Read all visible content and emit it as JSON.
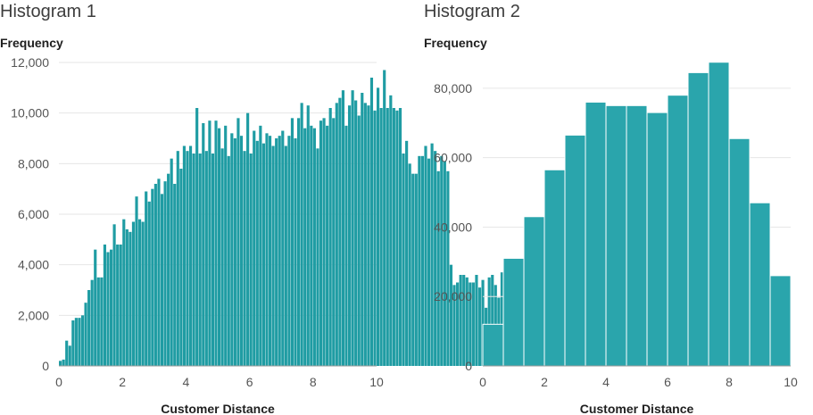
{
  "chart_data": [
    {
      "type": "bar",
      "title": "Histogram 1",
      "xlabel": "Customer Distance",
      "ylabel": "Frequency",
      "xlim": [
        0,
        10
      ],
      "ylim": [
        0,
        12000
      ],
      "xticks": [
        "0",
        "2",
        "4",
        "6",
        "8",
        "10"
      ],
      "yticks": [
        "0",
        "2,000",
        "4,000",
        "6,000",
        "8,000",
        "10,000",
        "12,000"
      ],
      "grid": true,
      "bin_width": 0.1,
      "bin_start": 0,
      "values": [
        200,
        250,
        1000,
        800,
        1800,
        1900,
        1900,
        2000,
        2500,
        3000,
        3400,
        4600,
        3500,
        3500,
        4800,
        4500,
        4600,
        5600,
        4800,
        4800,
        5800,
        5400,
        5300,
        5700,
        6700,
        5800,
        5700,
        6900,
        6500,
        7000,
        7200,
        7400,
        6800,
        7300,
        7600,
        8200,
        7200,
        8500,
        7800,
        8700,
        8500,
        8700,
        8400,
        10200,
        8400,
        9600,
        8500,
        9700,
        8400,
        9700,
        9400,
        8600,
        9500,
        8300,
        9200,
        9000,
        9800,
        9100,
        8500,
        10000,
        8400,
        9300,
        8900,
        9500,
        8800,
        9200,
        9100,
        8700,
        9000,
        9100,
        9300,
        8700,
        9100,
        9800,
        9000,
        9800,
        10400,
        9400,
        10300,
        9500,
        9400,
        8600,
        9700,
        9800,
        9500,
        10200,
        9800,
        10400,
        10600,
        10900,
        9500,
        10300,
        10900,
        10500,
        9900,
        10800,
        10400,
        10300,
        11400,
        10100,
        11000,
        10200,
        11700,
        10200,
        10700,
        10200,
        10100,
        10200,
        8400,
        8900,
        8000,
        7600,
        7600,
        8300,
        8300,
        8700,
        8200,
        8800,
        8500,
        7700,
        8300,
        8100,
        7700,
        4000,
        3200,
        3300,
        3600,
        3600,
        3500,
        3300,
        3300,
        3600,
        3100,
        3400,
        2300,
        3500,
        3600,
        3200,
        2700,
        3700,
        3500,
        3200,
        3000,
        2700
      ]
    },
    {
      "type": "bar",
      "title": "Histogram 2",
      "xlabel": "Customer Distance",
      "ylabel": "Frequency",
      "xlim": [
        0,
        10
      ],
      "ylim": [
        0,
        90000
      ],
      "xticks": [
        "0",
        "2",
        "4",
        "6",
        "8",
        "10"
      ],
      "yticks": [
        "0",
        "20,000",
        "40,000",
        "60,000",
        "80,000"
      ],
      "grid": true,
      "bin_width": 0.6667,
      "bin_start": 0,
      "values": [
        12000,
        31000,
        43000,
        56500,
        66500,
        76000,
        75000,
        75000,
        73000,
        78000,
        84500,
        87500,
        65500,
        47000,
        26000
      ]
    }
  ]
}
